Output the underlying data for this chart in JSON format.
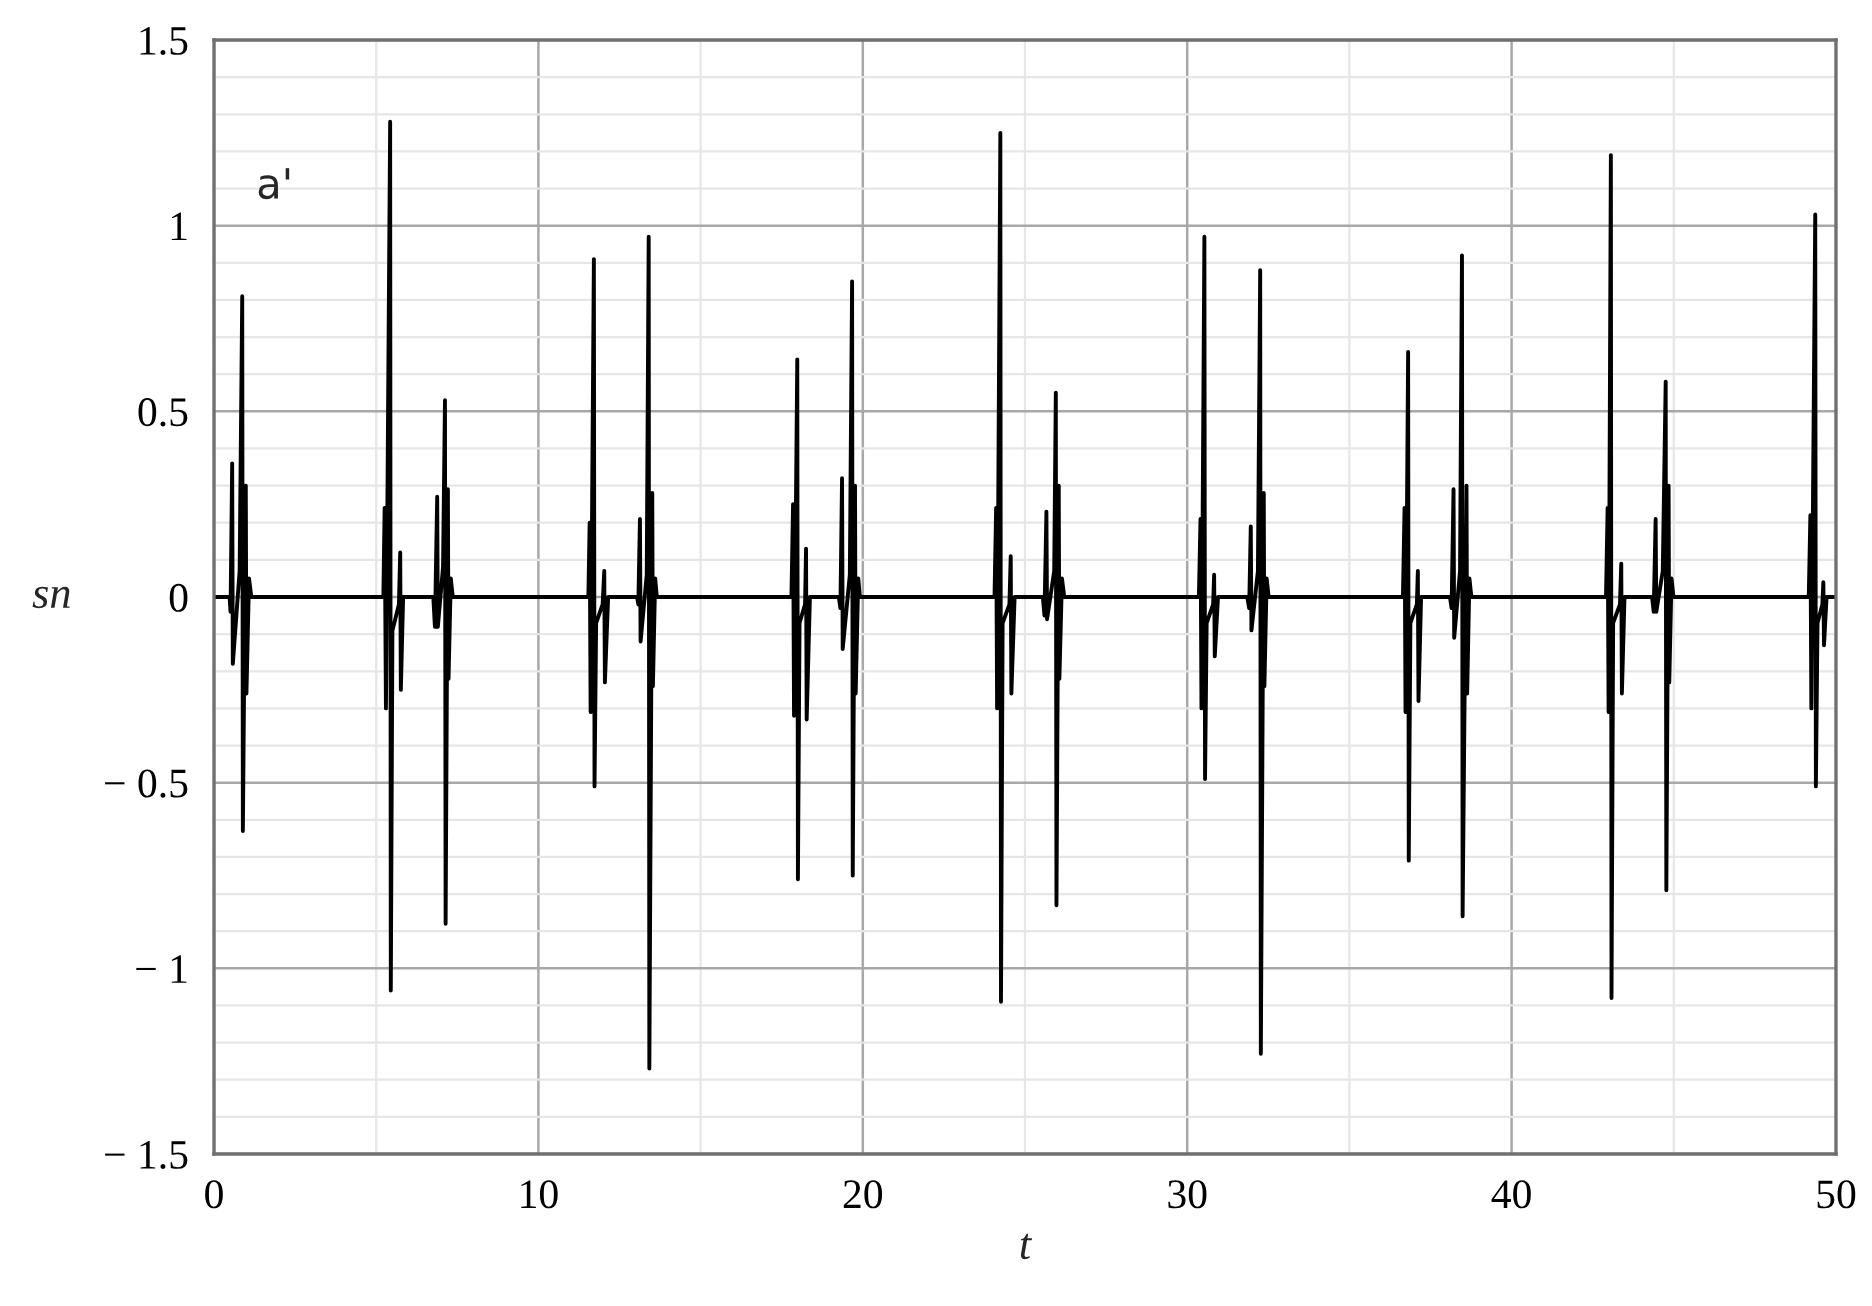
{
  "chart_data": {
    "type": "line",
    "xlabel": "t",
    "ylabel": "sn",
    "annotations": [
      "a'"
    ],
    "color": "#000000",
    "line_style": "solid",
    "grid": true,
    "xlim": [
      0,
      50
    ],
    "ylim": [
      -1.5,
      1.5
    ],
    "xticks": [
      0,
      {
        "value": 5,
        "label": null
      },
      10,
      {
        "value": 15,
        "label": null
      },
      20,
      {
        "value": 25,
        "label": null
      },
      30,
      {
        "value": 35,
        "label": null
      },
      40,
      {
        "value": 45,
        "label": null
      },
      50
    ],
    "yticks": [
      {
        "value": -1.5,
        "label": "− 1.5"
      },
      {
        "value": -1.4,
        "label": null
      },
      {
        "value": -1.3,
        "label": null
      },
      {
        "value": -1.2,
        "label": null
      },
      {
        "value": -1.1,
        "label": null
      },
      {
        "value": -1,
        "label": "− 1"
      },
      {
        "value": -0.9,
        "label": null
      },
      {
        "value": -0.8,
        "label": null
      },
      {
        "value": -0.7,
        "label": null
      },
      {
        "value": -0.6,
        "label": null
      },
      {
        "value": -0.5,
        "label": "− 0.5"
      },
      {
        "value": -0.4,
        "label": null
      },
      {
        "value": -0.3,
        "label": null
      },
      {
        "value": -0.2,
        "label": null
      },
      {
        "value": -0.1,
        "label": null
      },
      0,
      {
        "value": 0.1,
        "label": null
      },
      {
        "value": 0.2,
        "label": null
      },
      {
        "value": 0.3,
        "label": null
      },
      {
        "value": 0.4,
        "label": null
      },
      0.5,
      {
        "value": 0.6,
        "label": null
      },
      {
        "value": 0.7,
        "label": null
      },
      {
        "value": 0.8,
        "label": null
      },
      {
        "value": 0.9,
        "label": null
      },
      1,
      {
        "value": 1.1,
        "label": null
      },
      {
        "value": 1.2,
        "label": null
      },
      {
        "value": 1.3,
        "label": null
      },
      {
        "value": 1.4,
        "label": null
      },
      1.5
    ],
    "x": [
      0,
      0.48,
      0.51,
      0.56,
      0.58,
      0.79,
      0.87,
      0.89,
      0.98,
      1.0,
      1.08,
      1.15,
      5.22,
      5.26,
      5.3,
      5.43,
      5.45,
      5.5,
      5.7,
      5.74,
      5.76,
      5.83,
      6.76,
      6.81,
      6.88,
      6.9,
      7.06,
      7.12,
      7.14,
      7.21,
      7.23,
      7.3,
      7.36,
      11.54,
      11.58,
      11.61,
      11.71,
      11.73,
      11.78,
      11.98,
      12.03,
      12.05,
      12.15,
      13.04,
      13.08,
      13.13,
      13.15,
      13.34,
      13.4,
      13.42,
      13.51,
      13.53,
      13.6,
      13.65,
      17.8,
      17.85,
      17.88,
      17.98,
      18.0,
      18.05,
      18.22,
      18.25,
      18.27,
      18.37,
      19.26,
      19.31,
      19.36,
      19.38,
      19.6,
      19.67,
      19.69,
      19.76,
      19.78,
      19.86,
      19.91,
      24.06,
      24.11,
      24.14,
      24.24,
      24.26,
      24.31,
      24.52,
      24.56,
      24.58,
      24.68,
      25.55,
      25.6,
      25.66,
      25.68,
      25.9,
      25.95,
      25.97,
      26.04,
      26.06,
      26.14,
      26.21,
      30.36,
      30.41,
      30.44,
      30.53,
      30.55,
      30.6,
      30.8,
      30.83,
      30.85,
      30.95,
      31.85,
      31.91,
      31.96,
      31.98,
      32.18,
      32.25,
      32.27,
      32.36,
      32.38,
      32.45,
      32.51,
      36.65,
      36.7,
      36.73,
      36.81,
      36.83,
      36.88,
      37.08,
      37.11,
      37.13,
      37.21,
      38.1,
      38.15,
      38.21,
      38.23,
      38.41,
      38.47,
      38.49,
      38.61,
      38.63,
      38.7,
      38.76,
      42.91,
      42.96,
      42.99,
      43.06,
      43.08,
      43.13,
      43.34,
      43.38,
      43.4,
      43.48,
      44.33,
      44.38,
      44.44,
      44.46,
      44.66,
      44.75,
      44.77,
      44.84,
      44.86,
      44.93,
      44.99,
      49.16,
      49.21,
      49.24,
      49.36,
      49.38,
      49.43,
      49.58,
      49.61,
      49.63,
      49.71,
      50
    ],
    "values": [
      0,
      0,
      -0.04,
      0.36,
      -0.18,
      0.07,
      0.81,
      -0.63,
      0.3,
      -0.26,
      0.05,
      0,
      0,
      0.24,
      -0.3,
      1.28,
      -1.06,
      -0.09,
      -0.02,
      0.12,
      -0.25,
      0,
      0,
      -0.08,
      0.27,
      -0.08,
      0.08,
      0.53,
      -0.88,
      0.29,
      -0.22,
      0.05,
      0,
      0,
      0.2,
      -0.31,
      0.91,
      -0.51,
      -0.07,
      -0.02,
      0.07,
      -0.23,
      0,
      0,
      -0.02,
      0.21,
      -0.12,
      0.06,
      0.97,
      -1.27,
      0.28,
      -0.24,
      0.05,
      0,
      0,
      0.25,
      -0.32,
      0.64,
      -0.76,
      -0.07,
      -0.02,
      0.13,
      -0.33,
      0,
      0,
      -0.03,
      0.32,
      -0.14,
      0.06,
      0.85,
      -0.75,
      0.3,
      -0.26,
      0.05,
      0,
      0,
      0.24,
      -0.3,
      1.25,
      -1.09,
      -0.07,
      -0.02,
      0.11,
      -0.26,
      0,
      0,
      -0.05,
      0.23,
      -0.06,
      0.07,
      0.55,
      -0.83,
      0.3,
      -0.22,
      0.05,
      0,
      0,
      0.21,
      -0.3,
      0.97,
      -0.49,
      -0.07,
      -0.02,
      0.06,
      -0.16,
      0,
      0,
      -0.03,
      0.19,
      -0.09,
      0.07,
      0.88,
      -1.23,
      0.28,
      -0.24,
      0.05,
      0,
      0,
      0.24,
      -0.31,
      0.66,
      -0.71,
      -0.07,
      -0.02,
      0.07,
      -0.28,
      0,
      0,
      -0.03,
      0.29,
      -0.11,
      0.07,
      0.92,
      -0.86,
      0.3,
      -0.26,
      0.05,
      0,
      0,
      0.24,
      -0.31,
      1.19,
      -1.08,
      -0.07,
      -0.02,
      0.09,
      -0.26,
      0,
      0,
      -0.04,
      0.21,
      -0.04,
      0.07,
      0.58,
      -0.79,
      0.3,
      -0.23,
      0.05,
      0,
      0,
      0.22,
      -0.3,
      1.03,
      -0.51,
      -0.07,
      -0.02,
      0.04,
      -0.13,
      0,
      0
    ]
  }
}
